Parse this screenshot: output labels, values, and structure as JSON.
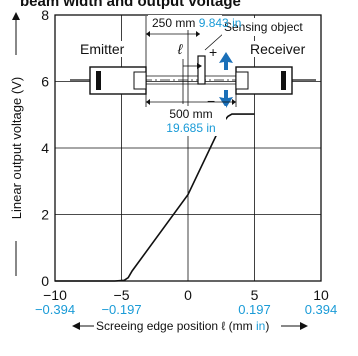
{
  "header": {
    "title": "beam width and output voltage"
  },
  "diagram": {
    "emitter_label": "Emitter",
    "receiver_label": "Receiver",
    "sensing_object_label": "Sensing object",
    "gap_mm": "250 mm",
    "gap_in": "9.843 in",
    "span_mm": "500 mm",
    "span_in": "19.685 in",
    "ell_symbol": "ℓ",
    "plus_sign": "+",
    "minus_sign": "−"
  },
  "chart_data": {
    "type": "line",
    "ylabel": "Linear output voltage (V)",
    "xlabel_main": "Screeing edge position ℓ (mm ",
    "xlabel_unit": "in",
    "xlabel_close": ")",
    "xlim": [
      -10,
      10
    ],
    "ylim": [
      0,
      8
    ],
    "x_ticks": [
      -10,
      -5,
      0,
      5,
      10
    ],
    "x_tick_labels_mm": [
      "−10",
      "−5",
      "0",
      "5",
      "10"
    ],
    "x_tick_labels_in": [
      "−0.394",
      "−0.197",
      "",
      "0.197",
      "0.394"
    ],
    "y_ticks": [
      0,
      2,
      4,
      6,
      8
    ],
    "y_tick_labels": [
      "0",
      "2",
      "4",
      "6",
      "8"
    ],
    "grid": true,
    "series": [
      {
        "x": [
          -10,
          -5.5,
          -4.8,
          -4.5,
          -4.2,
          0,
          2.5,
          3,
          3.3,
          5
        ],
        "y": [
          0,
          0,
          0.02,
          0.1,
          0.3,
          2.6,
          4.7,
          4.95,
          5.02,
          5.02
        ]
      }
    ]
  },
  "colors": {
    "accent": "#1a9bd7",
    "line": "#111111"
  }
}
